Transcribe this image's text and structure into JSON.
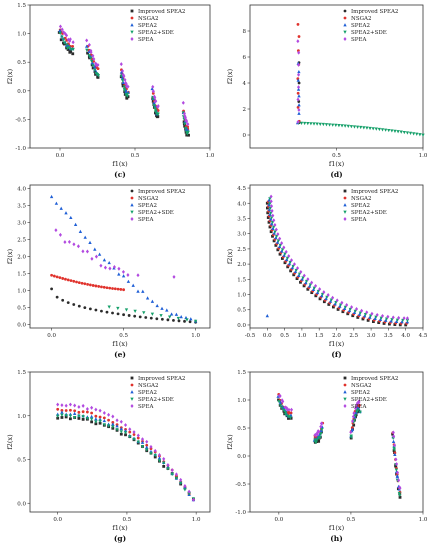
{
  "colors": {
    "improved": "#2b2b2b",
    "nsga2": "#e0322c",
    "spea2": "#1f5fd6",
    "sde": "#16a06a",
    "spea": "#b24ae0"
  },
  "legend_labels": [
    "Improved SPEA2",
    "NSGA2",
    "SPEA2",
    "SPEA2+SDE",
    "SPEA"
  ],
  "chart_data": [
    {
      "id": "c",
      "panel_label": "(c)",
      "type": "scatter",
      "xlabel": "f1(x)",
      "ylabel": "f2(x)",
      "xlim": [
        -0.2,
        1.0
      ],
      "ylim": [
        -1.0,
        1.5
      ],
      "xticks": [
        0.0,
        0.5,
        1.0
      ],
      "xtick_labels": [
        "0.0",
        "0.5",
        "1.0"
      ],
      "yticks": [
        -1.0,
        -0.5,
        0.0,
        0.5,
        1.0,
        1.5
      ],
      "ytick_labels": [
        "-1.0",
        "-0.5",
        "0.0",
        "0.5",
        "1.0",
        "1.5"
      ],
      "legend": "top-right",
      "curve": {
        "kind": "zdt3",
        "segments": [
          [
            0.0,
            0.083
          ],
          [
            0.182,
            0.257
          ],
          [
            0.409,
            0.452
          ],
          [
            0.618,
            0.652
          ],
          [
            0.823,
            0.852
          ]
        ]
      },
      "series": [
        {
          "name": "Improved SPEA2",
          "key": "improved",
          "marker": "square",
          "offset": 0.0
        },
        {
          "name": "NSGA2",
          "key": "nsga2",
          "marker": "circle",
          "offset": 0.12
        },
        {
          "name": "SPEA2",
          "key": "spea2",
          "marker": "triangle",
          "offset": 0.07
        },
        {
          "name": "SPEA2+SDE",
          "key": "sde",
          "marker": "triangle-down",
          "offset": 0.04
        },
        {
          "name": "SPEA",
          "key": "spea",
          "marker": "diamond",
          "offset": 0.2
        }
      ]
    },
    {
      "id": "d",
      "panel_label": "(d)",
      "type": "scatter",
      "xlabel": "f1(x)",
      "ylabel": "f2(x)",
      "xlim": [
        0.0,
        1.0
      ],
      "ylim": [
        -1.0,
        10.0
      ],
      "xticks": [
        0.5,
        1.0
      ],
      "xtick_labels": [
        "0.5",
        "1.0"
      ],
      "yticks": [
        0,
        2,
        4,
        6,
        8
      ],
      "ytick_labels": [
        "0",
        "2",
        "4",
        "6",
        "8"
      ],
      "legend": "top-right",
      "curve": {
        "kind": "zdt6"
      },
      "series": [
        {
          "name": "Improved SPEA2",
          "key": "improved",
          "marker": "circle",
          "offset": 0.0
        },
        {
          "name": "NSGA2",
          "key": "nsga2",
          "marker": "circle",
          "offset": 0.0
        },
        {
          "name": "SPEA2",
          "key": "spea2",
          "marker": "triangle",
          "offset": 0.0
        },
        {
          "name": "SPEA2+SDE",
          "key": "sde",
          "marker": "triangle-down",
          "offset": 0.0
        },
        {
          "name": "SPEA",
          "key": "spea",
          "marker": "diamond",
          "offset": 0.0
        }
      ]
    },
    {
      "id": "e",
      "panel_label": "(e)",
      "type": "scatter",
      "xlabel": "f1(x)",
      "ylabel": "f2(x)",
      "xlim": [
        -0.15,
        1.1
      ],
      "ylim": [
        -0.1,
        4.1
      ],
      "xticks": [
        0.0,
        0.5,
        1.0
      ],
      "xtick_labels": [
        "0.0",
        "0.5",
        "1.0"
      ],
      "yticks": [
        0.0,
        0.5,
        1.0,
        1.5,
        2.0,
        2.5,
        3.0,
        3.5,
        4.0
      ],
      "ytick_labels": [
        "0.0",
        "0.5",
        "1.0",
        "1.5",
        "2.0",
        "2.5",
        "3.0",
        "3.5",
        "4.0"
      ],
      "legend": "top-right",
      "curve": {
        "kind": "dtlz"
      },
      "series": [
        {
          "name": "Improved SPEA2",
          "key": "improved",
          "marker": "circle"
        },
        {
          "name": "NSGA2",
          "key": "nsga2",
          "marker": "circle"
        },
        {
          "name": "SPEA2",
          "key": "spea2",
          "marker": "triangle"
        },
        {
          "name": "SPEA2+SDE",
          "key": "sde",
          "marker": "triangle-down"
        },
        {
          "name": "SPEA",
          "key": "spea",
          "marker": "diamond"
        }
      ]
    },
    {
      "id": "f",
      "panel_label": "(f)",
      "type": "scatter",
      "xlabel": "f1(x)",
      "ylabel": "f2(x)",
      "xlim": [
        -0.5,
        4.5
      ],
      "ylim": [
        -0.1,
        4.6
      ],
      "xticks": [
        -0.5,
        0.0,
        0.5,
        1.0,
        1.5,
        2.0,
        2.5,
        3.0,
        3.5,
        4.0,
        4.5
      ],
      "xtick_labels": [
        "-0.5",
        "0.0",
        "0.5",
        "1.0",
        "1.5",
        "2.0",
        "2.5",
        "3.0",
        "3.5",
        "4.0",
        "4.5"
      ],
      "yticks": [
        0.0,
        0.5,
        1.0,
        1.5,
        2.0,
        2.5,
        3.0,
        3.5,
        4.0,
        4.5
      ],
      "ytick_labels": [
        "0.0",
        "0.5",
        "1.0",
        "1.5",
        "2.0",
        "2.5",
        "3.0",
        "3.5",
        "4.0",
        "4.5"
      ],
      "legend": "top-right",
      "curve": {
        "kind": "circle",
        "radius": 4.0
      },
      "series": [
        {
          "name": "Improved SPEA2",
          "key": "improved",
          "marker": "square",
          "offset": 0.0
        },
        {
          "name": "NSGA2",
          "key": "nsga2",
          "marker": "circle",
          "offset": 0.05
        },
        {
          "name": "SPEA2",
          "key": "spea2",
          "marker": "triangle",
          "offset": 0.1
        },
        {
          "name": "SPEA2+SDE",
          "key": "sde",
          "marker": "triangle-down",
          "offset": 0.15
        },
        {
          "name": "SPEA",
          "key": "spea",
          "marker": "diamond",
          "offset": 0.22
        }
      ]
    },
    {
      "id": "g",
      "panel_label": "(g)",
      "type": "scatter",
      "xlabel": "f1(x)",
      "ylabel": "f2(x)",
      "xlim": [
        -0.2,
        1.1
      ],
      "ylim": [
        -0.1,
        1.5
      ],
      "xticks": [
        0.0,
        0.5,
        1.0
      ],
      "xtick_labels": [
        "0.0",
        "0.5",
        "1.0"
      ],
      "yticks": [
        0.0,
        0.5,
        1.0,
        1.5
      ],
      "ytick_labels": [
        "0.0",
        "0.5",
        "1.0",
        "1.5"
      ],
      "legend": "top-right",
      "curve": {
        "kind": "concave"
      },
      "series": [
        {
          "name": "Improved SPEA2",
          "key": "improved",
          "marker": "square",
          "offset": 0.0
        },
        {
          "name": "NSGA2",
          "key": "nsga2",
          "marker": "circle",
          "offset": 0.09
        },
        {
          "name": "SPEA2",
          "key": "spea2",
          "marker": "triangle",
          "offset": 0.05
        },
        {
          "name": "SPEA2+SDE",
          "key": "sde",
          "marker": "triangle-down",
          "offset": 0.02
        },
        {
          "name": "SPEA",
          "key": "spea",
          "marker": "diamond",
          "offset": 0.15
        }
      ]
    },
    {
      "id": "h",
      "panel_label": "(h)",
      "type": "scatter",
      "xlabel": "f1(x)",
      "ylabel": "f2(x)",
      "xlim": [
        -0.2,
        1.0
      ],
      "ylim": [
        -1.0,
        1.5
      ],
      "xticks": [
        0.0,
        0.5,
        1.0
      ],
      "xtick_labels": [
        "0.0",
        "0.5",
        "1.0"
      ],
      "yticks": [
        -1.0,
        -0.5,
        0.0,
        0.5,
        1.0,
        1.5
      ],
      "ytick_labels": [
        "-1.0",
        "-0.5",
        "0.0",
        "0.5",
        "1.0",
        "1.5"
      ],
      "legend": "top-right",
      "curve": {
        "kind": "zdt3",
        "segments": [
          [
            0.0,
            0.083
          ],
          [
            0.25,
            0.3
          ],
          [
            0.5,
            0.56
          ],
          [
            0.79,
            0.84
          ]
        ]
      },
      "series": [
        {
          "name": "Improved SPEA2",
          "key": "improved",
          "marker": "square",
          "offset": 0.0
        },
        {
          "name": "NSGA2",
          "key": "nsga2",
          "marker": "circle",
          "offset": 0.09
        },
        {
          "name": "SPEA2",
          "key": "spea2",
          "marker": "triangle",
          "offset": 0.05
        },
        {
          "name": "SPEA2+SDE",
          "key": "sde",
          "marker": "triangle-down",
          "offset": 0.02
        },
        {
          "name": "SPEA",
          "key": "spea",
          "marker": "diamond",
          "offset": 0.15
        }
      ]
    }
  ]
}
